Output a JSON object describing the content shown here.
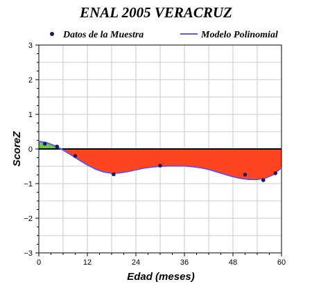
{
  "chart_data": {
    "type": "line",
    "title": "ENAL 2005 VERACRUZ",
    "xlabel": "Edad (meses)",
    "ylabel": "ScoreZ",
    "xlim": [
      0,
      60
    ],
    "ylim": [
      -3,
      3
    ],
    "x_ticks": [
      0,
      12,
      24,
      36,
      48,
      60
    ],
    "y_ticks": [
      -3,
      -2,
      -1,
      0,
      1,
      2,
      3
    ],
    "x_tick_labels": [
      "0",
      "12",
      "24",
      "36",
      "48",
      "60"
    ],
    "y_tick_labels": [
      "−3",
      "−2",
      "−1",
      "0",
      "1",
      "2",
      "3"
    ],
    "grid": true,
    "legend_position": "top",
    "series": [
      {
        "name": "Datos de la Muestra",
        "kind": "scatter",
        "color": "#1a1a5e",
        "x": [
          1.5,
          4.5,
          9,
          18.5,
          30,
          51,
          55.5,
          58.5
        ],
        "y": [
          0.15,
          0.07,
          -0.2,
          -0.73,
          -0.48,
          -0.74,
          -0.9,
          -0.7
        ]
      },
      {
        "name": "Modelo Polinomial",
        "kind": "line",
        "color": "#5a5ae6",
        "x": [
          0,
          2,
          4,
          6,
          8,
          10,
          12,
          14,
          16,
          18,
          20,
          22,
          24,
          26,
          28,
          30,
          32,
          34,
          36,
          38,
          40,
          42,
          44,
          46,
          48,
          50,
          52,
          54,
          56,
          58,
          60
        ],
        "y": [
          0.22,
          0.18,
          0.09,
          -0.03,
          -0.17,
          -0.32,
          -0.46,
          -0.58,
          -0.66,
          -0.7,
          -0.69,
          -0.65,
          -0.6,
          -0.55,
          -0.52,
          -0.5,
          -0.49,
          -0.49,
          -0.49,
          -0.51,
          -0.54,
          -0.59,
          -0.66,
          -0.73,
          -0.8,
          -0.85,
          -0.88,
          -0.88,
          -0.84,
          -0.74,
          -0.54
        ]
      }
    ],
    "fill_colors": {
      "positive": "#66cc44",
      "negative": "#ff4422"
    },
    "zero_line_color": "#000000"
  }
}
